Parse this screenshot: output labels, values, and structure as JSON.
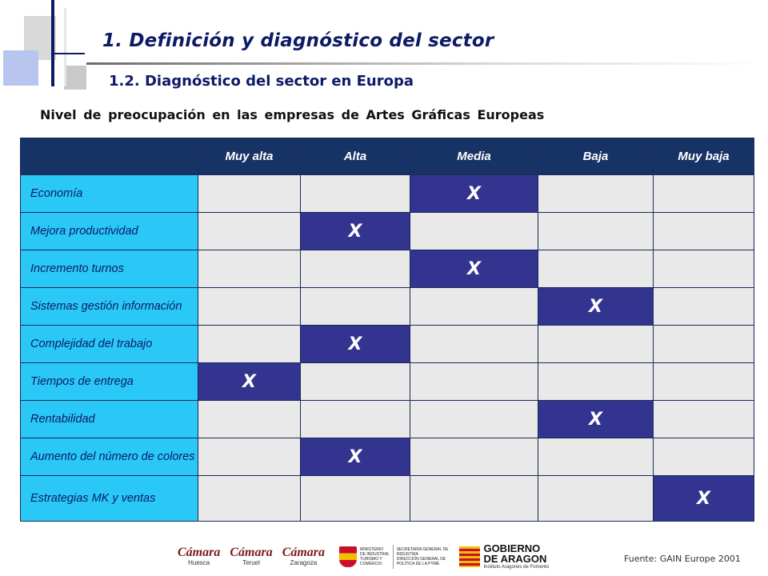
{
  "header": {
    "title": "1.  Definición y diagnóstico del sector",
    "subtitle": "1.2. Diagnóstico del sector en Europa"
  },
  "table": {
    "title": "Nivel de preocupación en las empresas de Artes Gráficas Europeas",
    "columns": [
      "Muy alta",
      "Alta",
      "Media",
      "Baja",
      "Muy baja"
    ],
    "rows": [
      {
        "label": "Economía",
        "mark": "X",
        "level_index": 2
      },
      {
        "label": "Mejora productividad",
        "mark": "X",
        "level_index": 1
      },
      {
        "label": "Incremento turnos",
        "mark": "X",
        "level_index": 2
      },
      {
        "label": "Sistemas gestión información",
        "mark": "X",
        "level_index": 3
      },
      {
        "label": "Complejidad del trabajo",
        "mark": "X",
        "level_index": 1
      },
      {
        "label": "Tiempos de entrega",
        "mark": "X",
        "level_index": 0
      },
      {
        "label": "Rentabilidad",
        "mark": "X",
        "level_index": 3
      },
      {
        "label": "Aumento del número de colores",
        "mark": "X",
        "level_index": 1
      },
      {
        "label": "Estrategias MK y ventas",
        "mark": "X",
        "level_index": 4
      }
    ]
  },
  "footer": {
    "logos": {
      "camara_word": "Cámara",
      "camara_cities": [
        "Huesca",
        "Teruel",
        "Zaragoza"
      ],
      "ministerio_lines": [
        "MINISTERIO",
        "DE INDUSTRIA,",
        "TURISMO Y",
        "COMERCIO"
      ],
      "secretaria_lines": [
        "SECRETARÍA GENERAL DE",
        "INDUSTRIA",
        "DIRECCIÓN GENERAL DE",
        "POLÍTICA DE LA PYME"
      ],
      "gobierno_lines": [
        "GOBIERNO",
        "DE ARAGON"
      ],
      "gobierno_sub": "Instituto Aragonés de Fomento"
    },
    "source": "Fuente: GAIN Europe 2001"
  },
  "colors": {
    "title": "#0d1a66",
    "header_bg": "#173366",
    "row_label_bg": "#29c8f7",
    "cell_bg": "#e9e9e9",
    "mark_bg": "#33348f"
  }
}
